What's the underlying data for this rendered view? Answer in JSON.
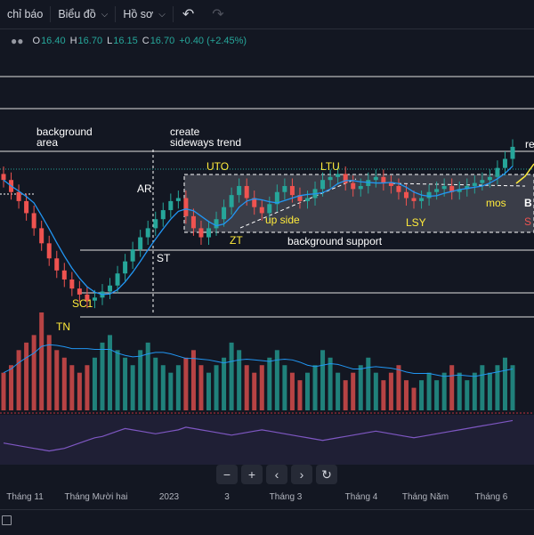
{
  "toolbar": {
    "indicators_label": "chỉ báo",
    "chart_label": "Biểu đồ",
    "profile_label": "Hồ sơ",
    "undo_icon": "undo-icon",
    "redo_icon": "redo-icon"
  },
  "ohlc": {
    "o_label": "O",
    "o_value": "16.40",
    "h_label": "H",
    "h_value": "16.70",
    "l_label": "L",
    "l_value": "16.15",
    "c_label": "C",
    "c_value": "16.70",
    "change": "+0.40 (+2.45%)",
    "up_color": "#26a69a"
  },
  "annotations": {
    "background_area_1": "background",
    "background_area_2": "area",
    "create_1": "create",
    "create_2": "sideways trend",
    "ar": "AR",
    "uto": "UTO",
    "ltu": "LTU",
    "re": "re",
    "zt": "ZT",
    "up_side": "up side",
    "st": "ST",
    "bg_support": "background support",
    "lsy": "LSY",
    "mos": "mos",
    "b": "B",
    "s": "S",
    "sc1": "SC1",
    "tn": "TN"
  },
  "chart_data": {
    "type": "candlestick",
    "series": [
      {
        "name": "price",
        "values": [
          15.6,
          15.2,
          14.9,
          14.5,
          14.0,
          13.5,
          13.0,
          12.6,
          12.3,
          12.0,
          11.8,
          11.6,
          11.7,
          11.9,
          12.1,
          12.5,
          12.9,
          13.3,
          13.7,
          14.0,
          14.3,
          14.6,
          14.9,
          15.0,
          14.4,
          14.0,
          13.7,
          14.0,
          14.3,
          14.7,
          15.1,
          15.4,
          15.0,
          14.7,
          14.5,
          14.8,
          15.2,
          15.4,
          15.1,
          14.9,
          15.0,
          15.3,
          15.6,
          15.7,
          15.8,
          15.5,
          15.3,
          15.4,
          15.6,
          15.7,
          15.5,
          15.4,
          15.2,
          15.0,
          14.9,
          15.0,
          15.2,
          15.3,
          15.4,
          15.2,
          15.3,
          15.4,
          15.5,
          15.6,
          15.7,
          16.0,
          16.3,
          16.7
        ]
      },
      {
        "name": "volume",
        "values": [
          0.5,
          0.6,
          0.8,
          0.9,
          1.0,
          1.3,
          1.0,
          0.8,
          0.7,
          0.6,
          0.5,
          0.6,
          0.7,
          0.9,
          1.0,
          0.8,
          0.7,
          0.6,
          0.8,
          0.9,
          0.7,
          0.6,
          0.5,
          0.6,
          0.7,
          0.8,
          0.6,
          0.5,
          0.6,
          0.7,
          0.9,
          0.8,
          0.6,
          0.5,
          0.6,
          0.7,
          0.8,
          0.6,
          0.5,
          0.4,
          0.5,
          0.6,
          0.8,
          0.7,
          0.5,
          0.4,
          0.5,
          0.6,
          0.7,
          0.5,
          0.4,
          0.5,
          0.6,
          0.4,
          0.3,
          0.4,
          0.5,
          0.4,
          0.5,
          0.6,
          0.5,
          0.4,
          0.5,
          0.6,
          0.5,
          0.6,
          0.7,
          0.6
        ]
      },
      {
        "name": "oscillator",
        "values": [
          30,
          28,
          26,
          24,
          22,
          20,
          18,
          20,
          22,
          26,
          30,
          34,
          38,
          40,
          44,
          48,
          52,
          50,
          48,
          46,
          44,
          46,
          48,
          50,
          54,
          52,
          50,
          48,
          46,
          44,
          42,
          44,
          46,
          48,
          50,
          48,
          46,
          44,
          42,
          40,
          38,
          36,
          34,
          36,
          38,
          40,
          42,
          44,
          46,
          48,
          46,
          44,
          42,
          40,
          38,
          40,
          42,
          44,
          46,
          48,
          50,
          52,
          54,
          56,
          58,
          60,
          62,
          64
        ]
      }
    ],
    "x_ticks": [
      "Tháng 11",
      "Tháng Mười hai",
      "2023",
      "3",
      "Tháng 3",
      "Tháng 4",
      "Tháng Năm",
      "Tháng 6"
    ],
    "up_color": "#26a69a",
    "down_color": "#ef5350",
    "ma_color": "#2196f3",
    "osc_color": "#7e57c2"
  }
}
